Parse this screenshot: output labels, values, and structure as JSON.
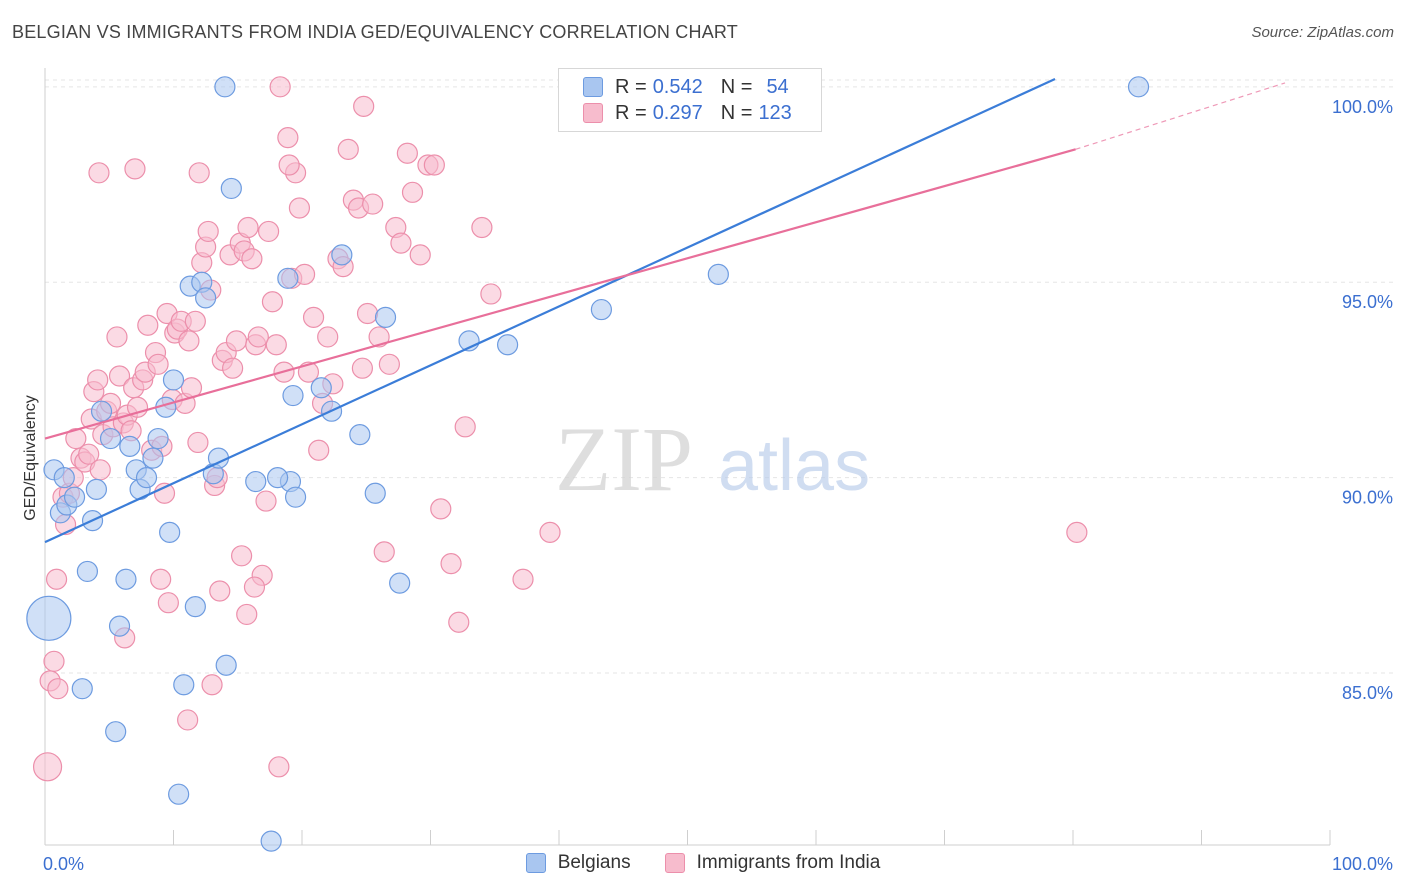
{
  "header": {
    "title": "BELGIAN VS IMMIGRANTS FROM INDIA GED/EQUIVALENCY CORRELATION CHART",
    "source": "Source: ZipAtlas.com"
  },
  "watermark": {
    "zip": "ZIP",
    "atlas": "atlas"
  },
  "legend": {
    "rows": [
      {
        "r_label": "R =",
        "r_value": "0.542",
        "n_label": "N =",
        "n_value": "54",
        "color": "#a9c6f0",
        "border": "#6d9be0"
      },
      {
        "r_label": "R =",
        "r_value": "0.297",
        "n_label": "N =",
        "n_value": "123",
        "color": "#f7bccd",
        "border": "#ec8fab"
      }
    ]
  },
  "bottom_legend": {
    "items": [
      {
        "label": "Belgians",
        "color": "#a9c6f0",
        "border": "#6d9be0"
      },
      {
        "label": "Immigrants from India",
        "color": "#f7bccd",
        "border": "#ec8fab"
      }
    ]
  },
  "chart_data": {
    "type": "scatter",
    "title": "BELGIAN VS IMMIGRANTS FROM INDIA GED/EQUIVALENCY CORRELATION CHART",
    "xlabel": "",
    "ylabel": "GED/Equivalency",
    "xlim": [
      0,
      100
    ],
    "ylim": [
      80.6,
      100.2
    ],
    "x_tick_labels": [
      "0.0%",
      "100.0%"
    ],
    "y_ticks": [
      85,
      90,
      95,
      100
    ],
    "y_tick_labels": [
      "85.0%",
      "90.0%",
      "95.0%",
      "100.0%"
    ],
    "grid": true,
    "legend_position": "top-center",
    "colors": {
      "belgians": "#3b7dd8",
      "india": "#e86f9a",
      "axis_label": "#3b6fd0"
    },
    "series": [
      {
        "name": "Belgians",
        "r": 0.542,
        "n": 54,
        "trend": {
          "x0": 0.0,
          "y0": 88.35,
          "x1": 78.6,
          "y1": 100.2
        },
        "points": [
          [
            0.3,
            86.4,
            "L"
          ],
          [
            0.7,
            90.2
          ],
          [
            1.2,
            89.1
          ],
          [
            1.5,
            90.0
          ],
          [
            1.7,
            89.3
          ],
          [
            2.3,
            89.5
          ],
          [
            2.9,
            84.6
          ],
          [
            3.3,
            87.6
          ],
          [
            3.7,
            88.9
          ],
          [
            4.0,
            89.7
          ],
          [
            4.4,
            91.7
          ],
          [
            5.1,
            91.0
          ],
          [
            5.5,
            83.5
          ],
          [
            5.8,
            86.2
          ],
          [
            6.3,
            87.4
          ],
          [
            6.6,
            90.8
          ],
          [
            7.1,
            90.2
          ],
          [
            7.4,
            89.7
          ],
          [
            7.9,
            90.0
          ],
          [
            8.4,
            90.5
          ],
          [
            8.8,
            91.0
          ],
          [
            9.4,
            91.8
          ],
          [
            9.7,
            88.6
          ],
          [
            10.0,
            92.5
          ],
          [
            10.4,
            81.9
          ],
          [
            10.8,
            84.7
          ],
          [
            11.3,
            94.9
          ],
          [
            11.7,
            86.7
          ],
          [
            12.2,
            95.0
          ],
          [
            12.5,
            94.6
          ],
          [
            13.1,
            90.1
          ],
          [
            13.5,
            90.5
          ],
          [
            14.1,
            85.2
          ],
          [
            14.5,
            97.4
          ],
          [
            14.0,
            100.0
          ],
          [
            16.4,
            89.9
          ],
          [
            17.6,
            80.7
          ],
          [
            18.9,
            95.1
          ],
          [
            19.3,
            92.1
          ],
          [
            19.1,
            89.9
          ],
          [
            19.5,
            89.5
          ],
          [
            21.5,
            92.3
          ],
          [
            22.3,
            91.7
          ],
          [
            23.1,
            95.7
          ],
          [
            24.5,
            91.1
          ],
          [
            25.7,
            89.6
          ],
          [
            26.5,
            94.1
          ],
          [
            27.6,
            87.3
          ],
          [
            33.0,
            93.5
          ],
          [
            36.0,
            93.4
          ],
          [
            43.3,
            94.3
          ],
          [
            52.4,
            95.2
          ],
          [
            85.1,
            100.0
          ],
          [
            18.1,
            90.0
          ]
        ]
      },
      {
        "name": "Immigrants from India",
        "r": 0.297,
        "n": 123,
        "trend": {
          "x0": 0.0,
          "y0": 91.0,
          "x1": 80.2,
          "y1": 98.4
        },
        "trend_dashed": {
          "x0": 80.2,
          "y0": 98.4,
          "x1": 96.5,
          "y1": 100.1
        },
        "points": [
          [
            0.2,
            82.6,
            "M"
          ],
          [
            0.4,
            84.8
          ],
          [
            0.7,
            85.3
          ],
          [
            1.0,
            84.6
          ],
          [
            0.9,
            87.4
          ],
          [
            1.4,
            89.5
          ],
          [
            1.6,
            88.8
          ],
          [
            1.9,
            89.6
          ],
          [
            2.2,
            90.0
          ],
          [
            2.4,
            91.0
          ],
          [
            2.8,
            90.5
          ],
          [
            3.1,
            90.4
          ],
          [
            3.4,
            90.6
          ],
          [
            3.6,
            91.5
          ],
          [
            3.8,
            92.2
          ],
          [
            4.1,
            92.5
          ],
          [
            4.3,
            90.2
          ],
          [
            4.5,
            91.1
          ],
          [
            4.8,
            91.7
          ],
          [
            5.1,
            91.9
          ],
          [
            5.3,
            91.3
          ],
          [
            5.6,
            93.6
          ],
          [
            5.8,
            92.6
          ],
          [
            6.1,
            91.4
          ],
          [
            6.4,
            91.6
          ],
          [
            6.7,
            91.2
          ],
          [
            6.9,
            92.3
          ],
          [
            7.2,
            91.8
          ],
          [
            7.6,
            92.5
          ],
          [
            7.8,
            92.7
          ],
          [
            8.0,
            93.9
          ],
          [
            8.3,
            90.7
          ],
          [
            8.6,
            93.2
          ],
          [
            8.8,
            92.9
          ],
          [
            9.1,
            90.8
          ],
          [
            9.3,
            89.6
          ],
          [
            9.5,
            94.2
          ],
          [
            9.6,
            86.8
          ],
          [
            9.9,
            92.0
          ],
          [
            10.1,
            93.7
          ],
          [
            10.3,
            93.8
          ],
          [
            10.6,
            94.0
          ],
          [
            10.9,
            91.9
          ],
          [
            11.2,
            93.5
          ],
          [
            11.4,
            92.3
          ],
          [
            11.7,
            94.0
          ],
          [
            11.9,
            90.9
          ],
          [
            12.2,
            95.5
          ],
          [
            12.5,
            95.9
          ],
          [
            12.7,
            96.3
          ],
          [
            12.9,
            94.8
          ],
          [
            13.2,
            89.8
          ],
          [
            13.4,
            90.0
          ],
          [
            13.6,
            87.1
          ],
          [
            13.8,
            93.0
          ],
          [
            14.1,
            93.2
          ],
          [
            14.4,
            95.7
          ],
          [
            14.6,
            92.8
          ],
          [
            14.9,
            93.5
          ],
          [
            15.2,
            96.0
          ],
          [
            15.5,
            95.8
          ],
          [
            15.8,
            96.4
          ],
          [
            16.1,
            95.6
          ],
          [
            16.4,
            93.4
          ],
          [
            16.6,
            93.6
          ],
          [
            16.9,
            87.5
          ],
          [
            17.2,
            89.4
          ],
          [
            17.4,
            96.3
          ],
          [
            17.7,
            94.5
          ],
          [
            18.0,
            93.4
          ],
          [
            18.3,
            100.0
          ],
          [
            18.6,
            92.7
          ],
          [
            18.9,
            98.7
          ],
          [
            19.2,
            95.1
          ],
          [
            19.5,
            97.8
          ],
          [
            19.8,
            96.9
          ],
          [
            20.2,
            95.2
          ],
          [
            20.5,
            92.7
          ],
          [
            20.9,
            94.1
          ],
          [
            21.3,
            90.7
          ],
          [
            21.6,
            91.9
          ],
          [
            22.0,
            93.6
          ],
          [
            22.4,
            92.4
          ],
          [
            22.8,
            95.6
          ],
          [
            23.2,
            95.4
          ],
          [
            23.6,
            98.4
          ],
          [
            24.0,
            97.1
          ],
          [
            24.4,
            96.9
          ],
          [
            24.7,
            92.8
          ],
          [
            25.1,
            94.2
          ],
          [
            25.5,
            97.0
          ],
          [
            26.0,
            93.6
          ],
          [
            26.4,
            88.1
          ],
          [
            26.8,
            92.9
          ],
          [
            27.3,
            96.4
          ],
          [
            27.7,
            96.0
          ],
          [
            28.2,
            98.3
          ],
          [
            28.6,
            97.3
          ],
          [
            29.2,
            95.7
          ],
          [
            29.8,
            98.0
          ],
          [
            30.3,
            98.0
          ],
          [
            30.8,
            89.2
          ],
          [
            31.6,
            87.8
          ],
          [
            32.2,
            86.3
          ],
          [
            32.7,
            91.3
          ],
          [
            34.0,
            96.4
          ],
          [
            34.7,
            94.7
          ],
          [
            37.2,
            87.4
          ],
          [
            39.3,
            88.6
          ],
          [
            15.3,
            88.0
          ],
          [
            11.1,
            83.8
          ],
          [
            13.0,
            84.7
          ],
          [
            15.7,
            86.5
          ],
          [
            16.3,
            87.2
          ],
          [
            18.2,
            82.6
          ],
          [
            9.0,
            87.4
          ],
          [
            6.2,
            85.9
          ],
          [
            7.0,
            97.9
          ],
          [
            4.2,
            97.8
          ],
          [
            12.0,
            97.8
          ],
          [
            19.0,
            98.0
          ],
          [
            24.8,
            99.5
          ],
          [
            80.3,
            88.6
          ]
        ]
      }
    ]
  }
}
